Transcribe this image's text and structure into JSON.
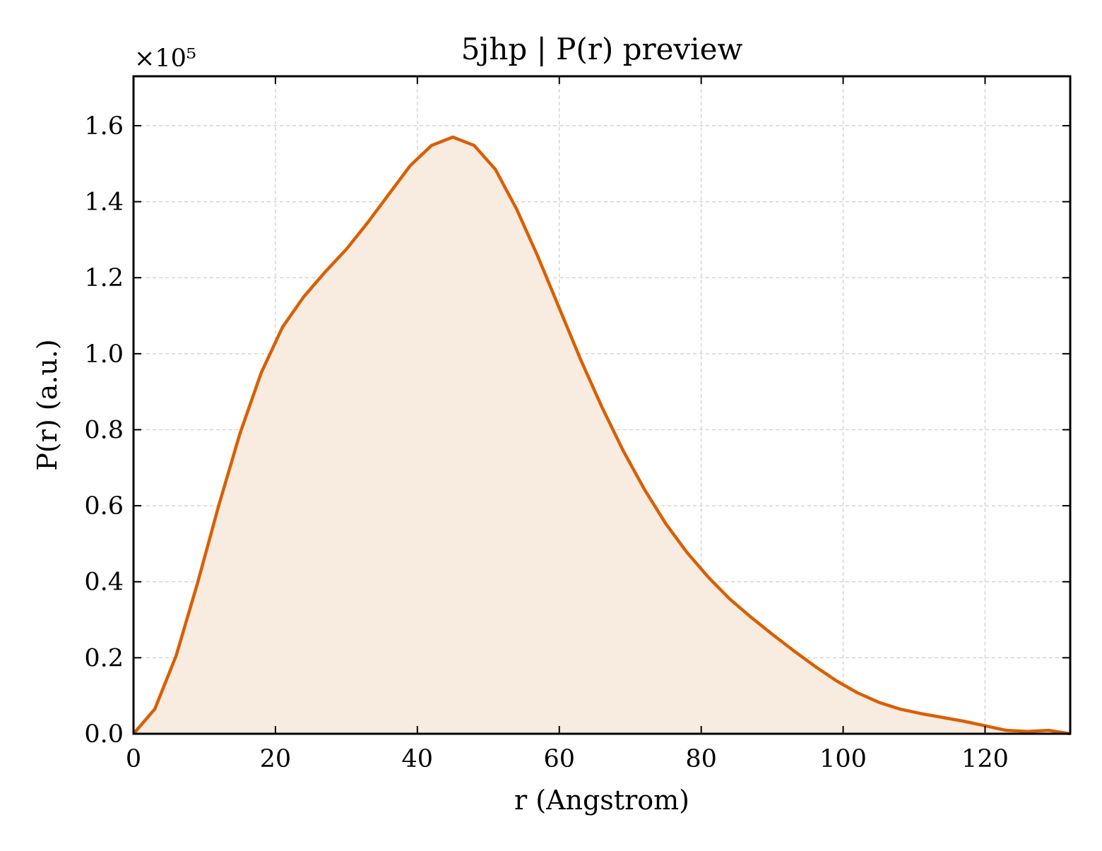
{
  "chart_data": {
    "type": "area",
    "title": "5jhp | P(r) preview",
    "xlabel": "r (Angstrom)",
    "ylabel": "P(r) (a.u.)",
    "y_offset_text": "×10⁵",
    "y_scale_factor": 100000,
    "xlim": [
      0,
      132
    ],
    "ylim": [
      0,
      1.73
    ],
    "x_ticks": [
      0,
      20,
      40,
      60,
      80,
      100,
      120
    ],
    "x_tick_labels": [
      "0",
      "20",
      "40",
      "60",
      "80",
      "100",
      "120"
    ],
    "y_ticks": [
      0.0,
      0.2,
      0.4,
      0.6,
      0.8,
      1.0,
      1.2,
      1.4,
      1.6
    ],
    "y_tick_labels": [
      "0.0",
      "0.2",
      "0.4",
      "0.6",
      "0.8",
      "1.0",
      "1.2",
      "1.4",
      "1.6"
    ],
    "grid": true,
    "colors": {
      "line": "#d95f02",
      "fill": "#f8ebe0"
    },
    "series": [
      {
        "x": [
          0,
          3,
          6,
          9,
          12,
          15,
          18,
          21,
          24,
          27,
          30,
          33,
          36,
          39,
          42,
          45,
          48,
          51,
          54,
          57,
          60,
          63,
          66,
          69,
          72,
          75,
          78,
          81,
          84,
          87,
          90,
          93,
          96,
          99,
          102,
          105,
          108,
          111,
          114,
          117,
          120,
          123,
          126,
          129,
          132
        ],
        "values": [
          0.0,
          0.065,
          0.205,
          0.395,
          0.6,
          0.79,
          0.95,
          1.07,
          1.15,
          1.215,
          1.275,
          1.345,
          1.42,
          1.495,
          1.548,
          1.57,
          1.548,
          1.485,
          1.38,
          1.255,
          1.12,
          0.985,
          0.86,
          0.745,
          0.643,
          0.553,
          0.477,
          0.412,
          0.355,
          0.307,
          0.262,
          0.219,
          0.178,
          0.14,
          0.108,
          0.083,
          0.065,
          0.053,
          0.043,
          0.033,
          0.021,
          0.009,
          0.006,
          0.009,
          0.0
        ]
      }
    ]
  }
}
